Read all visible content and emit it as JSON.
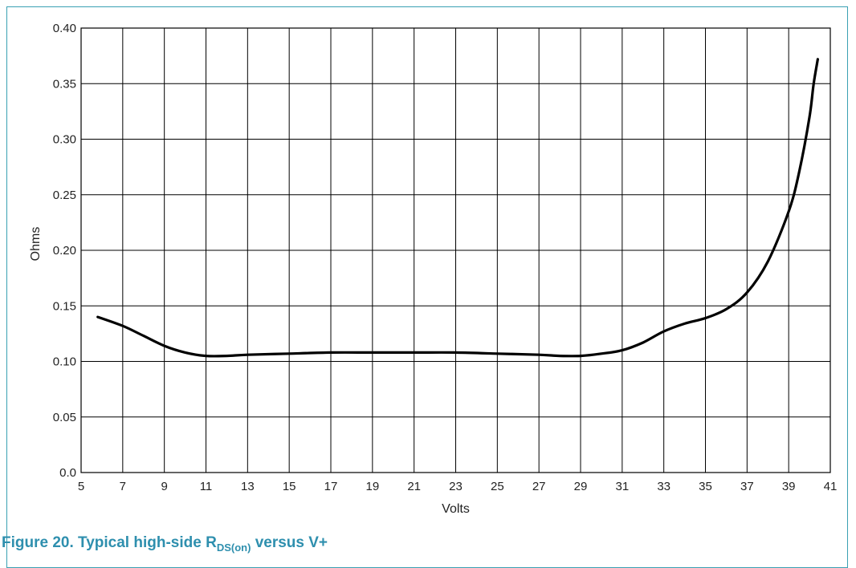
{
  "caption": {
    "prefix": "Figure 20.  Typical high-side R",
    "subscript": "DS(on)",
    "suffix": " versus V+"
  },
  "chart_data": {
    "type": "line",
    "xlabel": "Volts",
    "ylabel": "Ohms",
    "xlim": [
      5,
      41
    ],
    "ylim": [
      0,
      0.4
    ],
    "x_ticks": [
      5,
      7,
      9,
      11,
      13,
      15,
      17,
      19,
      21,
      23,
      25,
      27,
      29,
      31,
      33,
      35,
      37,
      39,
      41
    ],
    "y_ticks": [
      0,
      0.05,
      0.1,
      0.15,
      0.2,
      0.25,
      0.3,
      0.35,
      0.4
    ],
    "y_tick_labels": [
      "0.0",
      "0.05",
      "0.10",
      "0.15",
      "0.20",
      "0.25",
      "0.30",
      "0.35",
      "0.40"
    ],
    "grid": true,
    "series": [
      {
        "x": [
          5.8,
          7,
          8,
          9,
          10,
          11,
          12,
          13,
          15,
          17,
          19,
          21,
          23,
          25,
          27,
          28,
          29,
          30,
          31,
          32,
          33,
          34,
          35,
          36,
          37,
          38,
          39,
          39.5,
          40,
          40.2,
          40.4
        ],
        "y": [
          0.14,
          0.132,
          0.123,
          0.114,
          0.108,
          0.105,
          0.105,
          0.106,
          0.107,
          0.108,
          0.108,
          0.108,
          0.108,
          0.107,
          0.106,
          0.105,
          0.105,
          0.107,
          0.11,
          0.117,
          0.127,
          0.134,
          0.139,
          0.147,
          0.162,
          0.19,
          0.235,
          0.27,
          0.32,
          0.35,
          0.372
        ]
      }
    ],
    "colors": {
      "line": "#000000",
      "grid": "#000000"
    }
  }
}
